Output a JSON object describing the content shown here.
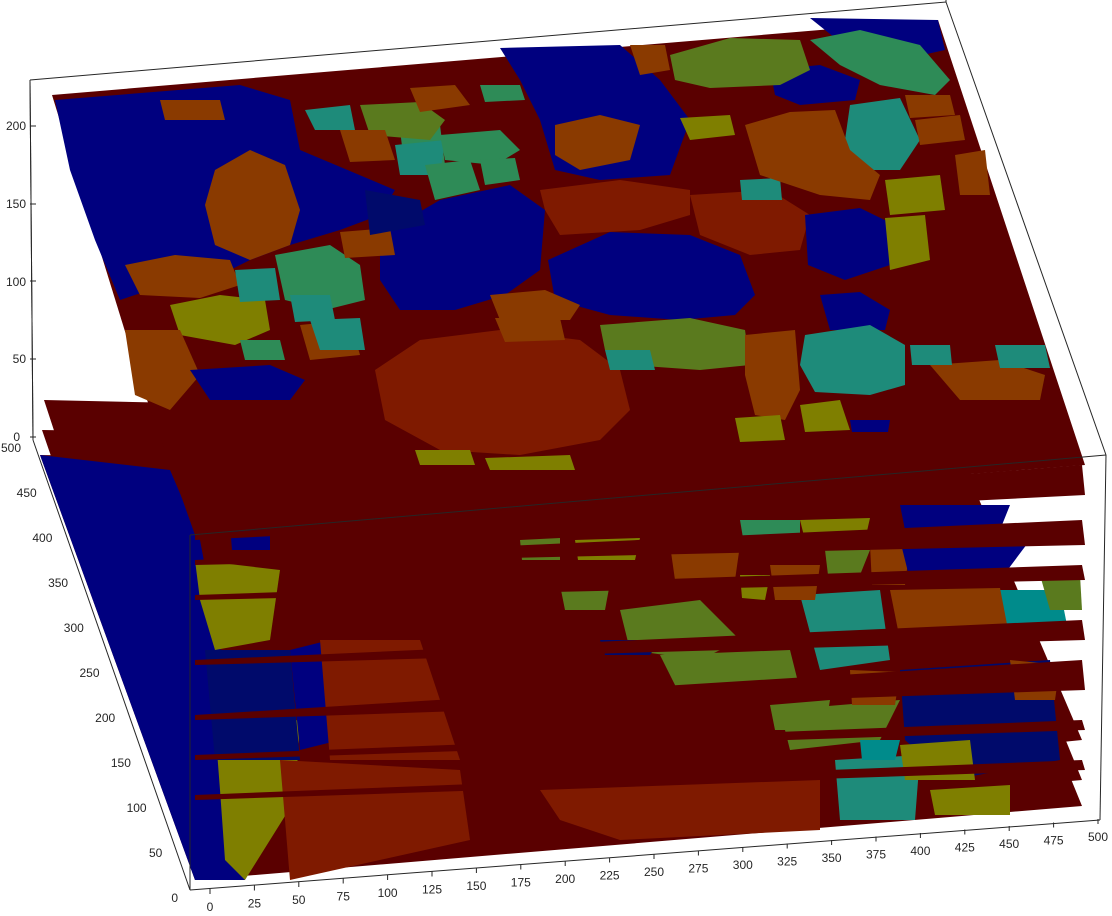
{
  "figure": {
    "kind": "3D stacked segmentation slices (label maps)",
    "colormap": "jet",
    "colors": {
      "background_label": "#5a0000",
      "dark_blue": "#00007f",
      "navy": "#000a6b",
      "red_brown": "#7f1a00",
      "orange_brown": "#8a3a00",
      "olive": "#7f7f00",
      "olive_green": "#5a7a1e",
      "green": "#2e8b57",
      "teal": "#1e8b7a",
      "cyan_teal": "#008b8b"
    }
  },
  "axes": {
    "z_ticks": [
      "0",
      "50",
      "100",
      "150",
      "200"
    ],
    "y_ticks": [
      "0",
      "50",
      "100",
      "150",
      "200",
      "250",
      "300",
      "350",
      "400",
      "450",
      "500"
    ],
    "x_ticks": [
      "0",
      "25",
      "50",
      "75",
      "100",
      "125",
      "150",
      "175",
      "200",
      "225",
      "250",
      "275",
      "300",
      "325",
      "350",
      "375",
      "400",
      "425",
      "450",
      "475",
      "500"
    ],
    "x_range": [
      0,
      500
    ],
    "y_range": [
      0,
      500
    ],
    "z_range": [
      0,
      225
    ]
  }
}
